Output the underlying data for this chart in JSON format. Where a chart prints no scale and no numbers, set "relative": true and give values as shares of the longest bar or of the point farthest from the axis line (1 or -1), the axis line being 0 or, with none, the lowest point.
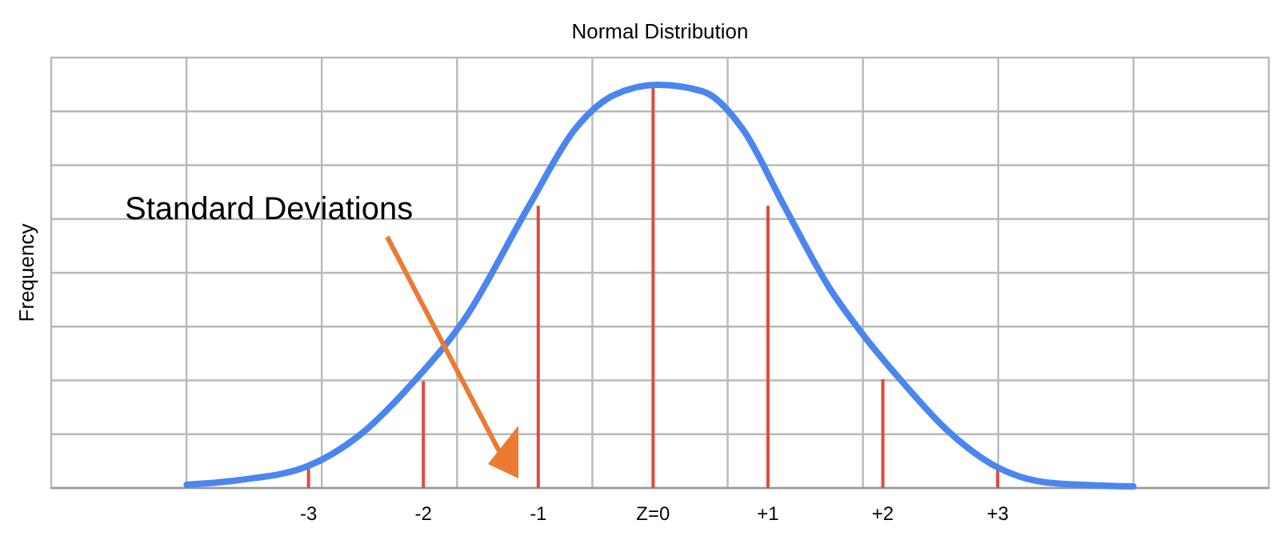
{
  "chart_data": {
    "type": "line",
    "title": "Normal Distribution",
    "ylabel": "Frequency",
    "relative": true,
    "grid": true,
    "annotations": [
      "Standard Deviations"
    ],
    "xlim": [
      -5.24,
      5.36
    ],
    "xticks": [
      -3,
      -2,
      -1,
      {
        "value": 0,
        "label": "Z=0"
      },
      {
        "value": 1,
        "label": "+1"
      },
      {
        "value": 2,
        "label": "+2"
      },
      {
        "value": 3,
        "label": "+3"
      }
    ],
    "series": [
      {
        "color": "#4a86ee",
        "x": [
          -4.06,
          -3.6,
          -3.0,
          -2.56,
          -2.08,
          -1.65,
          -1.08,
          -0.68,
          -0.33,
          0.04,
          0.43,
          0.78,
          1.14,
          1.54,
          1.82,
          2.14,
          2.58,
          3.0,
          3.49,
          4.18
        ],
        "values": [
          0.008,
          0.02,
          0.055,
          0.13,
          0.265,
          0.415,
          0.7,
          0.89,
          0.976,
          1.0,
          0.984,
          0.89,
          0.7,
          0.494,
          0.383,
          0.273,
          0.138,
          0.051,
          0.012,
          0.004
        ]
      },
      {
        "type": "bar",
        "color": "#e04a3c",
        "x": [
          -3,
          -2,
          -1,
          0,
          1,
          2,
          3
        ],
        "values": [
          0.055,
          0.265,
          0.7,
          1.0,
          0.7,
          0.27,
          0.05
        ]
      }
    ]
  }
}
